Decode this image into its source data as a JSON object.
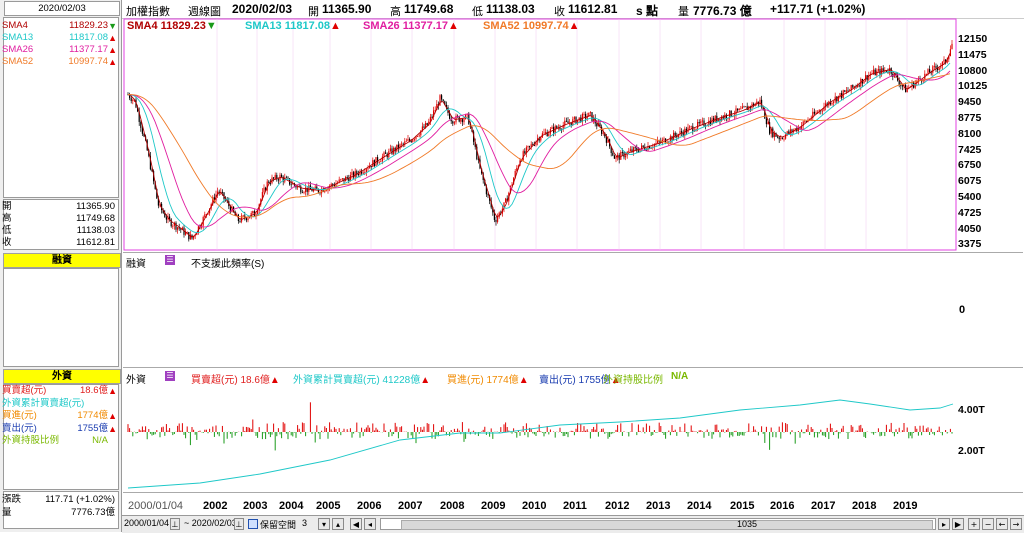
{
  "left_panel": {
    "date": "2020/02/03",
    "sma": [
      {
        "label": "SMA4",
        "value": "11829.23",
        "arrow": "▼",
        "color": "#b00000",
        "arrow_color": "#1a9a1a"
      },
      {
        "label": "SMA13",
        "value": "11817.08",
        "arrow": "▲",
        "color": "#1ec8c8",
        "arrow_color": "#e00000"
      },
      {
        "label": "SMA26",
        "value": "11377.17",
        "arrow": "▲",
        "color": "#e01ea0",
        "arrow_color": "#e00000"
      },
      {
        "label": "SMA52",
        "value": "10997.74",
        "arrow": "▲",
        "color": "#f07a28",
        "arrow_color": "#e00000"
      }
    ],
    "ohlc": [
      {
        "label": "開",
        "value": "11365.90"
      },
      {
        "label": "高",
        "value": "11749.68"
      },
      {
        "label": "低",
        "value": "11138.03"
      },
      {
        "label": "收",
        "value": "11612.81"
      }
    ],
    "margin_header": "融資",
    "foreign_header": "外資",
    "foreign_rows": [
      {
        "label": "買賣超(元)",
        "value": "18.6億",
        "arrow": "▲",
        "color": "#e01e1e"
      },
      {
        "label": "外資累計買賣超(元)",
        "value": "",
        "arrow": "",
        "color": "#1ec8c8"
      },
      {
        "label": "買進(元)",
        "value": "1774億",
        "arrow": "▲",
        "color": "#f08a00"
      },
      {
        "label": "賣出(元)",
        "value": "1755億",
        "arrow": "▲",
        "color": "#1a3cb0"
      },
      {
        "label": "外資持股比例",
        "value": "N/A",
        "arrow": "",
        "color": "#7ab800"
      }
    ],
    "change_label": "漲跌",
    "change_value": "117.71 (+1.02%)",
    "volume_label": "量",
    "volume_value": "7776.73億"
  },
  "top_bar": {
    "name": "加權指數",
    "period": "週線圖",
    "date": "2020/02/03",
    "open_label": "開",
    "open": "11365.90",
    "high_label": "高",
    "high": "11749.68",
    "low_label": "低",
    "low": "11138.03",
    "close_label": "收",
    "close": "11612.81",
    "s_label": "s 點",
    "vol_label": "量",
    "vol": "7776.73 億",
    "change": "+117.71 (+1.02%)"
  },
  "sma_legend": [
    {
      "text": "SMA4 11829.23",
      "arrow": "▼",
      "color": "#b00000",
      "arrow_color": "#1a9a1a"
    },
    {
      "text": "SMA13 11817.08",
      "arrow": "▲",
      "color": "#1ec8c8",
      "arrow_color": "#e00000"
    },
    {
      "text": "SMA26 11377.17",
      "arrow": "▲",
      "color": "#e01ea0",
      "arrow_color": "#e00000"
    },
    {
      "text": "SMA52 10997.74",
      "arrow": "▲",
      "color": "#f07a28",
      "arrow_color": "#e00000"
    }
  ],
  "price_axis": [
    "12150",
    "11475",
    "10800",
    "10125",
    "9450",
    "8775",
    "8100",
    "7425",
    "6750",
    "6075",
    "5400",
    "4725",
    "4050",
    "3375"
  ],
  "margin_panel": {
    "title": "融資",
    "note": "不支援此頻率(S)",
    "axis": "0"
  },
  "foreign_panel": {
    "title": "外資",
    "legend": [
      {
        "text": "買賣超(元) 18.6億",
        "arrow": "▲",
        "color": "#e01e1e"
      },
      {
        "text": "外資累計買賣超(元) 41228億",
        "arrow": "▲",
        "color": "#1ec8c8"
      },
      {
        "text": "買進(元) 1774億",
        "arrow": "▲",
        "color": "#f08a00"
      },
      {
        "text": "賣出(元) 1755億",
        "arrow": "▲",
        "color": "#1a3cb0"
      },
      {
        "text": "外資持股比例",
        "arrow": "",
        "color": "#7ab800"
      }
    ],
    "na": "N/A",
    "axis": [
      "4.00T",
      "2.00T"
    ]
  },
  "x_axis": [
    "2000/01/04",
    "2002",
    "2003",
    "2004",
    "2005",
    "2006",
    "2007",
    "2008",
    "2009",
    "2010",
    "2011",
    "2012",
    "2013",
    "2014",
    "2015",
    "2016",
    "2017",
    "2018",
    "2019"
  ],
  "bottom_bar": {
    "start_date": "2000/01/04",
    "end_date": "~ 2020/02/03",
    "keep_space": "保留空間",
    "keep_value": "3",
    "count": "1035"
  }
}
